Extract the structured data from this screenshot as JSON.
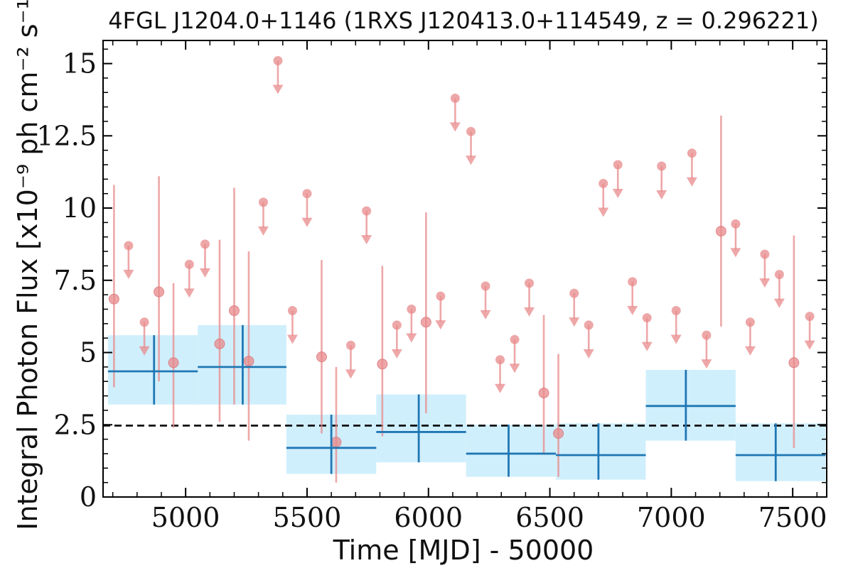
{
  "chart_data": {
    "type": "scatter",
    "title": "4FGL J1204.0+1146 (1RXS J120413.0+114549, z = 0.296221)",
    "xlabel": "Time [MJD] - 50000",
    "ylabel": "Integral Photon Flux [x10⁻⁹ ph cm⁻² s⁻¹]",
    "xlim": [
      4660,
      7640
    ],
    "ylim": [
      0,
      15.8
    ],
    "x_ticks": [
      5000,
      5500,
      6000,
      6500,
      7000,
      7500
    ],
    "y_ticks": [
      0,
      2.5,
      5,
      7.5,
      10,
      12.5,
      15
    ],
    "x_tick_labels": [
      "5000",
      "5500",
      "6000",
      "6500",
      "7000",
      "7500"
    ],
    "y_tick_labels": [
      "0",
      "2.5",
      "5",
      "7.5",
      "10",
      "12.5",
      "15"
    ],
    "mean_flux": 2.47,
    "grid": false,
    "colors": {
      "short_bins": "#e8898b",
      "long_bins": "#1f77b4",
      "long_bins_fill": "#cdeefc",
      "mean_line": "#000000"
    },
    "short_bins_detections": [
      {
        "x": 4705,
        "y": 6.85,
        "lo": 3.8,
        "hi": 10.8
      },
      {
        "x": 4890,
        "y": 7.1,
        "lo": 4.0,
        "hi": 11.1
      },
      {
        "x": 4950,
        "y": 4.65,
        "lo": 2.4,
        "hi": 7.4
      },
      {
        "x": 5140,
        "y": 5.3,
        "lo": 2.6,
        "hi": 8.9
      },
      {
        "x": 5200,
        "y": 6.45,
        "lo": 3.2,
        "hi": 10.7
      },
      {
        "x": 5260,
        "y": 4.7,
        "lo": 1.95,
        "hi": 8.5
      },
      {
        "x": 5560,
        "y": 4.85,
        "lo": 2.2,
        "hi": 8.2
      },
      {
        "x": 5620,
        "y": 1.9,
        "lo": 0.5,
        "hi": 4.5
      },
      {
        "x": 5810,
        "y": 4.6,
        "lo": 2.1,
        "hi": 8.0
      },
      {
        "x": 5990,
        "y": 6.05,
        "lo": 2.9,
        "hi": 9.85
      },
      {
        "x": 6475,
        "y": 3.6,
        "lo": 1.5,
        "hi": 6.3
      },
      {
        "x": 6535,
        "y": 2.2,
        "lo": 0.7,
        "hi": 4.95
      },
      {
        "x": 7205,
        "y": 9.2,
        "lo": 5.9,
        "hi": 13.2
      },
      {
        "x": 7505,
        "y": 4.65,
        "lo": 1.7,
        "hi": 9.05
      }
    ],
    "short_bins_upper_limits": [
      {
        "x": 4765,
        "y": 8.7
      },
      {
        "x": 4830,
        "y": 6.05
      },
      {
        "x": 5015,
        "y": 8.05
      },
      {
        "x": 5080,
        "y": 8.75
      },
      {
        "x": 5320,
        "y": 10.2
      },
      {
        "x": 5380,
        "y": 15.1
      },
      {
        "x": 5440,
        "y": 6.45
      },
      {
        "x": 5500,
        "y": 10.5
      },
      {
        "x": 5680,
        "y": 5.25
      },
      {
        "x": 5745,
        "y": 9.9
      },
      {
        "x": 5870,
        "y": 5.95
      },
      {
        "x": 5930,
        "y": 6.5
      },
      {
        "x": 6050,
        "y": 6.95
      },
      {
        "x": 6110,
        "y": 13.8
      },
      {
        "x": 6175,
        "y": 12.65
      },
      {
        "x": 6235,
        "y": 7.3
      },
      {
        "x": 6295,
        "y": 4.75
      },
      {
        "x": 6355,
        "y": 5.45
      },
      {
        "x": 6415,
        "y": 7.4
      },
      {
        "x": 6600,
        "y": 7.05
      },
      {
        "x": 6660,
        "y": 5.95
      },
      {
        "x": 6720,
        "y": 10.85
      },
      {
        "x": 6780,
        "y": 11.5
      },
      {
        "x": 6840,
        "y": 7.45
      },
      {
        "x": 6900,
        "y": 6.2
      },
      {
        "x": 6960,
        "y": 11.45
      },
      {
        "x": 7020,
        "y": 6.45
      },
      {
        "x": 7085,
        "y": 11.9
      },
      {
        "x": 7145,
        "y": 5.6
      },
      {
        "x": 7265,
        "y": 9.45
      },
      {
        "x": 7325,
        "y": 6.05
      },
      {
        "x": 7385,
        "y": 8.4
      },
      {
        "x": 7445,
        "y": 7.7
      },
      {
        "x": 7570,
        "y": 6.25
      }
    ],
    "long_bins": [
      {
        "x": 4870,
        "x0": 4680,
        "x1": 5050,
        "y": 4.35,
        "lo": 3.2,
        "hi": 5.6
      },
      {
        "x": 5235,
        "x0": 5050,
        "x1": 5415,
        "y": 4.5,
        "lo": 3.2,
        "hi": 5.95
      },
      {
        "x": 5600,
        "x0": 5415,
        "x1": 5785,
        "y": 1.7,
        "lo": 0.8,
        "hi": 2.85
      },
      {
        "x": 5960,
        "x0": 5785,
        "x1": 6155,
        "y": 2.25,
        "lo": 1.2,
        "hi": 3.55
      },
      {
        "x": 6330,
        "x0": 6155,
        "x1": 6525,
        "y": 1.5,
        "lo": 0.7,
        "hi": 2.5
      },
      {
        "x": 6700,
        "x0": 6525,
        "x1": 6895,
        "y": 1.45,
        "lo": 0.6,
        "hi": 2.55
      },
      {
        "x": 7060,
        "x0": 6895,
        "x1": 7265,
        "y": 3.15,
        "lo": 1.95,
        "hi": 4.4
      },
      {
        "x": 7430,
        "x0": 7265,
        "x1": 7635,
        "y": 1.45,
        "lo": 0.55,
        "hi": 2.55
      }
    ]
  }
}
